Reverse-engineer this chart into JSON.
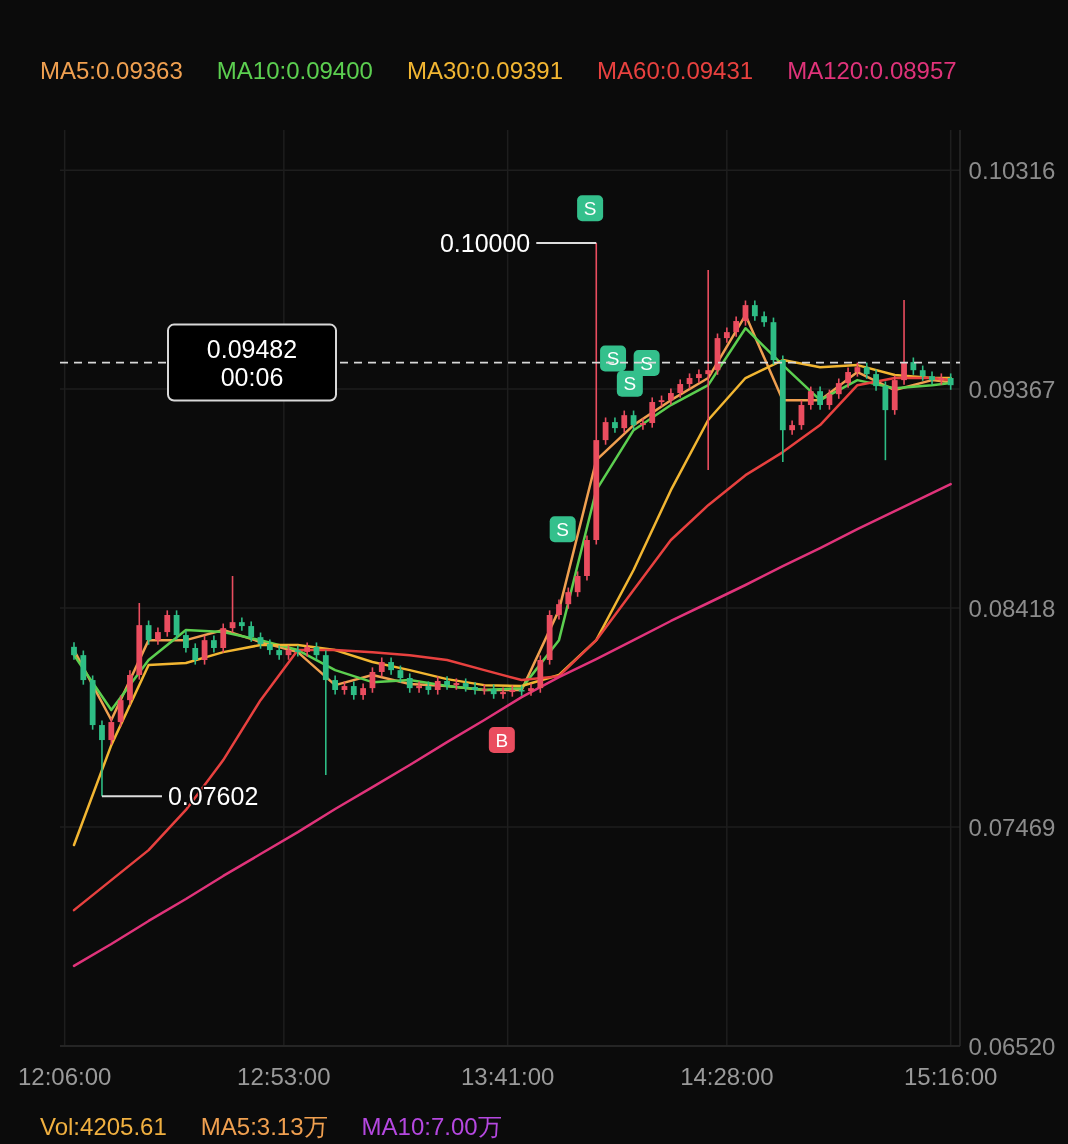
{
  "chart_data": {
    "type": "candlestick",
    "x": [
      12.1333,
      12.1667,
      12.2,
      12.2333,
      12.2667,
      12.3,
      12.3333,
      12.3667,
      12.4,
      12.4333,
      12.4667,
      12.5,
      12.5333,
      12.5667,
      12.6,
      12.6333,
      12.6667,
      12.7,
      12.7333,
      12.7667,
      12.8,
      12.8333,
      12.8667,
      12.9,
      12.9333,
      12.9667,
      13,
      13.0333,
      13.0667,
      13.1,
      13.1333,
      13.1667,
      13.2,
      13.2333,
      13.2667,
      13.3,
      13.3333,
      13.3667,
      13.4,
      13.4333,
      13.4667,
      13.5,
      13.5333,
      13.5667,
      13.6,
      13.6333,
      13.6667,
      13.7,
      13.7333,
      13.7667,
      13.8,
      13.8333,
      13.8667,
      13.9,
      13.9333,
      13.9667,
      14,
      14.0333,
      14.0667,
      14.1,
      14.1333,
      14.1667,
      14.2,
      14.2333,
      14.2667,
      14.3,
      14.3333,
      14.3667,
      14.4,
      14.4333,
      14.4667,
      14.5,
      14.5333,
      14.5667,
      14.6,
      14.6333,
      14.6667,
      14.7,
      14.7333,
      14.7667,
      14.8,
      14.8333,
      14.8667,
      14.9,
      14.9333,
      14.9667,
      15,
      15.0333,
      15.0667,
      15.1,
      15.1333,
      15.1667,
      15.2,
      15.2333,
      15.2667
    ],
    "ohlc": [
      [
        0.0825,
        0.0827,
        0.08194,
        0.08214
      ],
      [
        0.08214,
        0.08234,
        0.08086,
        0.08106
      ],
      [
        0.08106,
        0.08126,
        0.07891,
        0.07911
      ],
      [
        0.07911,
        0.07931,
        0.07602,
        0.07846
      ],
      [
        0.07846,
        0.07944,
        0.07826,
        0.07924
      ],
      [
        0.07924,
        0.08039,
        0.07904,
        0.08019
      ],
      [
        0.08019,
        0.08148,
        0.07999,
        0.08128
      ],
      [
        0.08128,
        0.0844,
        0.08108,
        0.08344
      ],
      [
        0.08344,
        0.08364,
        0.08259,
        0.08279
      ],
      [
        0.08279,
        0.08334,
        0.08259,
        0.08314
      ],
      [
        0.08314,
        0.08408,
        0.08294,
        0.08388
      ],
      [
        0.08388,
        0.08408,
        0.08281,
        0.08301
      ],
      [
        0.08301,
        0.08321,
        0.08225,
        0.08245
      ],
      [
        0.08245,
        0.08265,
        0.08173,
        0.08193
      ],
      [
        0.08193,
        0.08299,
        0.08173,
        0.08279
      ],
      [
        0.08279,
        0.08299,
        0.08225,
        0.08245
      ],
      [
        0.08245,
        0.08351,
        0.08225,
        0.08331
      ],
      [
        0.08331,
        0.08557,
        0.08311,
        0.08357
      ],
      [
        0.08357,
        0.08377,
        0.0832,
        0.0834
      ],
      [
        0.0834,
        0.0836,
        0.08272,
        0.08292
      ],
      [
        0.08292,
        0.08312,
        0.08242,
        0.08262
      ],
      [
        0.08262,
        0.08282,
        0.08216,
        0.08236
      ],
      [
        0.08236,
        0.08256,
        0.08194,
        0.08214
      ],
      [
        0.08214,
        0.08256,
        0.08194,
        0.08236
      ],
      [
        0.08236,
        0.08256,
        0.08208,
        0.08228
      ],
      [
        0.08228,
        0.08269,
        0.08208,
        0.08249
      ],
      [
        0.08249,
        0.08269,
        0.08194,
        0.08214
      ],
      [
        0.08214,
        0.08234,
        0.07694,
        0.08106
      ],
      [
        0.08106,
        0.08126,
        0.08043,
        0.08063
      ],
      [
        0.08063,
        0.081,
        0.08043,
        0.0808
      ],
      [
        0.0808,
        0.081,
        0.08021,
        0.08041
      ],
      [
        0.08041,
        0.08091,
        0.08021,
        0.08071
      ],
      [
        0.08071,
        0.08161,
        0.08051,
        0.08141
      ],
      [
        0.08141,
        0.08204,
        0.08121,
        0.08184
      ],
      [
        0.08184,
        0.08204,
        0.08129,
        0.08149
      ],
      [
        0.08149,
        0.08169,
        0.08095,
        0.08115
      ],
      [
        0.08115,
        0.08135,
        0.08051,
        0.08071
      ],
      [
        0.08071,
        0.081,
        0.08051,
        0.0808
      ],
      [
        0.0808,
        0.081,
        0.08043,
        0.08063
      ],
      [
        0.08063,
        0.08122,
        0.08043,
        0.08102
      ],
      [
        0.08102,
        0.08122,
        0.08064,
        0.08084
      ],
      [
        0.08084,
        0.08113,
        0.08064,
        0.08093
      ],
      [
        0.08093,
        0.08113,
        0.08056,
        0.08076
      ],
      [
        0.08076,
        0.08096,
        0.08043,
        0.08063
      ],
      [
        0.08063,
        0.08087,
        0.08043,
        0.08067
      ],
      [
        0.08067,
        0.08087,
        0.08025,
        0.08045
      ],
      [
        0.08045,
        0.08074,
        0.08025,
        0.08054
      ],
      [
        0.08054,
        0.08083,
        0.08034,
        0.08063
      ],
      [
        0.08063,
        0.08083,
        0.08038,
        0.08058
      ],
      [
        0.08058,
        0.08091,
        0.08038,
        0.08071
      ],
      [
        0.08071,
        0.08213,
        0.08051,
        0.08193
      ],
      [
        0.08193,
        0.08408,
        0.08173,
        0.08388
      ],
      [
        0.08388,
        0.08455,
        0.08368,
        0.08435
      ],
      [
        0.08435,
        0.08507,
        0.08415,
        0.08487
      ],
      [
        0.08487,
        0.08577,
        0.08467,
        0.08557
      ],
      [
        0.08557,
        0.08733,
        0.08537,
        0.08713
      ],
      [
        0.08713,
        0.1,
        0.08693,
        0.09146
      ],
      [
        0.09146,
        0.09244,
        0.09126,
        0.09224
      ],
      [
        0.09224,
        0.09244,
        0.09178,
        0.09198
      ],
      [
        0.09198,
        0.09274,
        0.09178,
        0.09254
      ],
      [
        0.09254,
        0.09274,
        0.09191,
        0.09211
      ],
      [
        0.09211,
        0.0924,
        0.09191,
        0.0922
      ],
      [
        0.0922,
        0.09331,
        0.092,
        0.09311
      ],
      [
        0.09311,
        0.09339,
        0.09291,
        0.09319
      ],
      [
        0.09319,
        0.0937,
        0.09299,
        0.0935
      ],
      [
        0.0935,
        0.09409,
        0.0933,
        0.09389
      ],
      [
        0.09389,
        0.09435,
        0.09369,
        0.09415
      ],
      [
        0.09415,
        0.09452,
        0.09395,
        0.09432
      ],
      [
        0.09432,
        0.09883,
        0.09016,
        0.09449
      ],
      [
        0.09449,
        0.09608,
        0.09429,
        0.09588
      ],
      [
        0.09588,
        0.09634,
        0.09568,
        0.09614
      ],
      [
        0.09614,
        0.09682,
        0.09594,
        0.09662
      ],
      [
        0.09662,
        0.09751,
        0.09642,
        0.09731
      ],
      [
        0.09731,
        0.09751,
        0.09663,
        0.09683
      ],
      [
        0.09683,
        0.09703,
        0.09637,
        0.09657
      ],
      [
        0.09657,
        0.09677,
        0.09473,
        0.09493
      ],
      [
        0.09493,
        0.09513,
        0.09051,
        0.09189
      ],
      [
        0.09189,
        0.09231,
        0.09169,
        0.09211
      ],
      [
        0.09211,
        0.09318,
        0.09191,
        0.09298
      ],
      [
        0.09298,
        0.09378,
        0.09278,
        0.09358
      ],
      [
        0.09358,
        0.09378,
        0.09278,
        0.09298
      ],
      [
        0.09298,
        0.09365,
        0.09278,
        0.09345
      ],
      [
        0.09345,
        0.09413,
        0.09325,
        0.09393
      ],
      [
        0.09393,
        0.09461,
        0.09373,
        0.09441
      ],
      [
        0.09441,
        0.09482,
        0.09421,
        0.09462
      ],
      [
        0.09462,
        0.09482,
        0.09412,
        0.09432
      ],
      [
        0.09432,
        0.09452,
        0.0936,
        0.0938
      ],
      [
        0.0938,
        0.094,
        0.09059,
        0.09276
      ],
      [
        0.09276,
        0.09426,
        0.09256,
        0.09406
      ],
      [
        0.09406,
        0.09753,
        0.09386,
        0.09484
      ],
      [
        0.09484,
        0.09504,
        0.09429,
        0.09449
      ],
      [
        0.09449,
        0.09469,
        0.09403,
        0.09423
      ],
      [
        0.09423,
        0.09443,
        0.09386,
        0.09406
      ],
      [
        0.09406,
        0.09435,
        0.09386,
        0.09415
      ],
      [
        0.09415,
        0.09435,
        0.09364,
        0.09384
      ]
    ],
    "colors": [
      "#2ebd85",
      "#2ebd85",
      "#2ebd85",
      "#2ebd85",
      "#ea4d5f",
      "#ea4d5f",
      "#ea4d5f",
      "#ea4d5f",
      "#2ebd85",
      "#ea4d5f",
      "#ea4d5f",
      "#2ebd85",
      "#2ebd85",
      "#2ebd85",
      "#ea4d5f",
      "#2ebd85",
      "#ea4d5f",
      "#ea4d5f",
      "#2ebd85",
      "#2ebd85",
      "#2ebd85",
      "#2ebd85",
      "#2ebd85",
      "#ea4d5f",
      "#2ebd85",
      "#ea4d5f",
      "#2ebd85",
      "#2ebd85",
      "#2ebd85",
      "#ea4d5f",
      "#2ebd85",
      "#ea4d5f",
      "#ea4d5f",
      "#ea4d5f",
      "#2ebd85",
      "#2ebd85",
      "#2ebd85",
      "#ea4d5f",
      "#2ebd85",
      "#ea4d5f",
      "#2ebd85",
      "#ea4d5f",
      "#2ebd85",
      "#2ebd85",
      "#ea4d5f",
      "#2ebd85",
      "#ea4d5f",
      "#ea4d5f",
      "#2ebd85",
      "#ea4d5f",
      "#ea4d5f",
      "#ea4d5f",
      "#ea4d5f",
      "#ea4d5f",
      "#ea4d5f",
      "#ea4d5f",
      "#ea4d5f",
      "#ea4d5f",
      "#2ebd85",
      "#ea4d5f",
      "#2ebd85",
      "#ea4d5f",
      "#ea4d5f",
      "#ea4d5f",
      "#ea4d5f",
      "#ea4d5f",
      "#ea4d5f",
      "#ea4d5f",
      "#ea4d5f",
      "#ea4d5f",
      "#ea4d5f",
      "#ea4d5f",
      "#ea4d5f",
      "#2ebd85",
      "#2ebd85",
      "#2ebd85",
      "#2ebd85",
      "#ea4d5f",
      "#ea4d5f",
      "#ea4d5f",
      "#2ebd85",
      "#ea4d5f",
      "#ea4d5f",
      "#ea4d5f",
      "#ea4d5f",
      "#2ebd85",
      "#2ebd85",
      "#2ebd85",
      "#ea4d5f",
      "#ea4d5f",
      "#2ebd85",
      "#2ebd85",
      "#2ebd85",
      "#ea4d5f",
      "#2ebd85"
    ],
    "series": [
      {
        "type": "line",
        "name": "MA5:0.09363",
        "color": "#f0a050",
        "x": [
          12.1333,
          12.2667,
          12.4,
          12.5333,
          12.6667,
          12.8,
          12.9333,
          13.0667,
          13.2,
          13.3333,
          13.4667,
          13.6,
          13.7333,
          13.8667,
          14,
          14.1333,
          14.2667,
          14.4,
          14.5333,
          14.6667,
          14.8,
          14.9333,
          15.0667,
          15.2,
          15.2667
        ],
        "values": [
          0.08236,
          0.07933,
          0.08279,
          0.08279,
          0.08323,
          0.08271,
          0.08227,
          0.08084,
          0.08128,
          0.08089,
          0.0808,
          0.08063,
          0.08063,
          0.08409,
          0.09059,
          0.09211,
          0.09319,
          0.09415,
          0.09688,
          0.09319,
          0.09319,
          0.09441,
          0.09363,
          0.09406,
          0.09397
        ]
      },
      {
        "type": "line",
        "name": "MA10:0.09400",
        "color": "#5ccf50",
        "x": [
          12.1333,
          12.2667,
          12.4,
          12.5333,
          12.6667,
          12.8,
          12.9333,
          13.0667,
          13.2,
          13.3333,
          13.4667,
          13.6,
          13.7333,
          13.8667,
          14,
          14.1333,
          14.2667,
          14.4,
          14.5333,
          14.6667,
          14.8,
          14.9333,
          15.0667,
          15.2,
          15.2667
        ],
        "values": [
          0.08214,
          0.07976,
          0.08193,
          0.08323,
          0.08314,
          0.08279,
          0.08236,
          0.08149,
          0.08097,
          0.08106,
          0.0808,
          0.08063,
          0.08071,
          0.08279,
          0.08929,
          0.09189,
          0.09298,
          0.09384,
          0.09631,
          0.09471,
          0.09319,
          0.09406,
          0.09371,
          0.09384,
          0.09393
        ]
      },
      {
        "type": "line",
        "name": "MA30:0.09391",
        "color": "#f2b632",
        "x": [
          12.1333,
          12.2667,
          12.4,
          12.5333,
          12.6667,
          12.8,
          12.9333,
          13.0667,
          13.2,
          13.3333,
          13.4667,
          13.6,
          13.7333,
          13.8667,
          14,
          14.1333,
          14.2667,
          14.4,
          14.5333,
          14.6667,
          14.8,
          14.9333,
          15.0667,
          15.2,
          15.2667
        ],
        "values": [
          0.07391,
          0.07824,
          0.08171,
          0.0818,
          0.08227,
          0.08258,
          0.08258,
          0.08236,
          0.08184,
          0.08149,
          0.0811,
          0.08084,
          0.0808,
          0.08128,
          0.08279,
          0.08583,
          0.08929,
          0.09233,
          0.09415,
          0.09493,
          0.09462,
          0.09471,
          0.09428,
          0.09415,
          0.09415
        ]
      },
      {
        "type": "line",
        "name": "MA60:0.09431",
        "color": "#e8413f",
        "x": [
          12.1333,
          12.2667,
          12.4,
          12.5333,
          12.6667,
          12.8,
          12.9333,
          13.0667,
          13.2,
          13.3333,
          13.4667,
          13.6,
          13.7333,
          13.8667,
          14,
          14.1333,
          14.2667,
          14.4,
          14.5333,
          14.6667,
          14.8,
          14.9333,
          15.0667,
          15.2,
          15.2667
        ],
        "values": [
          0.07109,
          0.07239,
          0.07369,
          0.07543,
          0.07759,
          0.08019,
          0.08236,
          0.08236,
          0.08227,
          0.08214,
          0.08193,
          0.08149,
          0.08106,
          0.08123,
          0.08279,
          0.08496,
          0.08713,
          0.08864,
          0.08994,
          0.09094,
          0.09211,
          0.09384,
          0.09415,
          0.09415,
          0.09406
        ]
      },
      {
        "type": "line",
        "name": "MA120:0.08957",
        "color": "#e0337a",
        "x": [
          12.1333,
          12.2667,
          12.4,
          12.5333,
          12.6667,
          12.8,
          12.9333,
          13.0667,
          13.2,
          13.3333,
          13.4667,
          13.6,
          13.7333,
          13.8667,
          14,
          14.1333,
          14.2667,
          14.4,
          14.5333,
          14.6667,
          14.8,
          14.9333,
          15.0667,
          15.2,
          15.2667
        ],
        "values": [
          0.06867,
          0.06962,
          0.07062,
          0.07157,
          0.07257,
          0.07352,
          0.07447,
          0.07547,
          0.07642,
          0.07738,
          0.07837,
          0.07933,
          0.08032,
          0.08119,
          0.08197,
          0.08279,
          0.08362,
          0.0844,
          0.08518,
          0.086,
          0.08678,
          0.0876,
          0.08838,
          0.08916,
          0.08955
        ]
      },
      {
        "type": "scatter",
        "marker": "square",
        "x": [
          13.978,
          14.06,
          14.12,
          14.18,
          13.88,
          13.6625
        ],
        "values": [
          0.10151,
          0.095,
          0.0939,
          0.0948,
          0.0876,
          0.07846
        ],
        "colors": [
          "#34c08c",
          "#34c08c",
          "#34c08c",
          "#34c08c",
          "#34c08c",
          "#ea4d5f"
        ],
        "value_labels": [
          "S",
          "S",
          "S",
          "S",
          "S",
          "B"
        ]
      }
    ],
    "xlim": [
      12.0833,
      15.3
    ],
    "xticks": [
      {
        "value": 12.1,
        "label": "12:06:00"
      },
      {
        "value": 12.8833,
        "label": "12:53:00"
      },
      {
        "value": 13.6833,
        "label": "13:41:00"
      },
      {
        "value": 14.4667,
        "label": "14:28:00"
      },
      {
        "value": 15.2667,
        "label": "15:16:00"
      }
    ],
    "ylim": [
      0.0652,
      0.1049
    ],
    "yticks": [
      {
        "value": 0.0652,
        "label": "0.06520"
      },
      {
        "value": 0.07469,
        "label": "0.07469"
      },
      {
        "value": 0.08418,
        "label": "0.08418"
      },
      {
        "value": 0.09367,
        "label": "0.09367"
      },
      {
        "value": 0.10316,
        "label": "0.10316"
      }
    ],
    "ref_lines": [
      {
        "axis": "y",
        "value": 0.09482,
        "label": "0.09482\n00:06",
        "line_style": "dashed",
        "color": "#d8d8d8"
      }
    ],
    "annotations": [
      {
        "text": "0.10000",
        "x": 14,
        "y": 0.1
      },
      {
        "text": "0.07602",
        "x": 12.2333,
        "y": 0.07602
      },
      "Vol:4205.61",
      "MA5:3.13万",
      "MA10:7.00万"
    ],
    "grid": true,
    "legend": "top"
  }
}
